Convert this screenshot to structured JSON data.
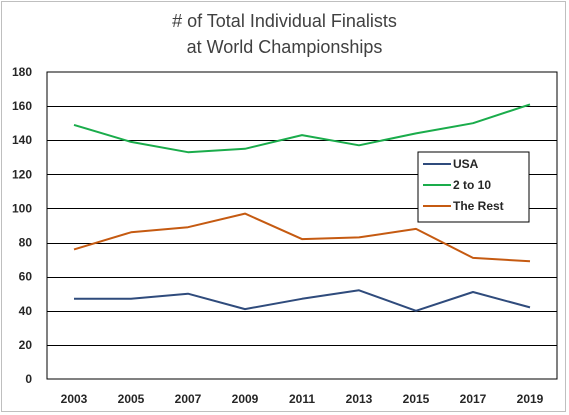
{
  "title_line1": "# of Total Individual Finalists",
  "title_line2": "at World Championships",
  "chart_data": {
    "type": "line",
    "title": "# of Total Individual Finalists at World Championships",
    "xlabel": "",
    "ylabel": "",
    "categories": [
      "2003",
      "2005",
      "2007",
      "2009",
      "2011",
      "2013",
      "2015",
      "2017",
      "2019"
    ],
    "ylim": [
      0,
      180
    ],
    "yticks": [
      0,
      20,
      40,
      60,
      80,
      100,
      120,
      140,
      160,
      180
    ],
    "grid": true,
    "legend_position": "right",
    "series": [
      {
        "name": "USA",
        "color": "#2f4b7c",
        "values": [
          47,
          47,
          50,
          41,
          47,
          52,
          40,
          51,
          42
        ]
      },
      {
        "name": "2 to 10",
        "color": "#1aac4b",
        "values": [
          149,
          139,
          133,
          135,
          143,
          137,
          144,
          150,
          161
        ]
      },
      {
        "name": "The Rest",
        "color": "#c55a11",
        "values": [
          76,
          86,
          89,
          97,
          82,
          83,
          88,
          71,
          69
        ]
      }
    ]
  }
}
